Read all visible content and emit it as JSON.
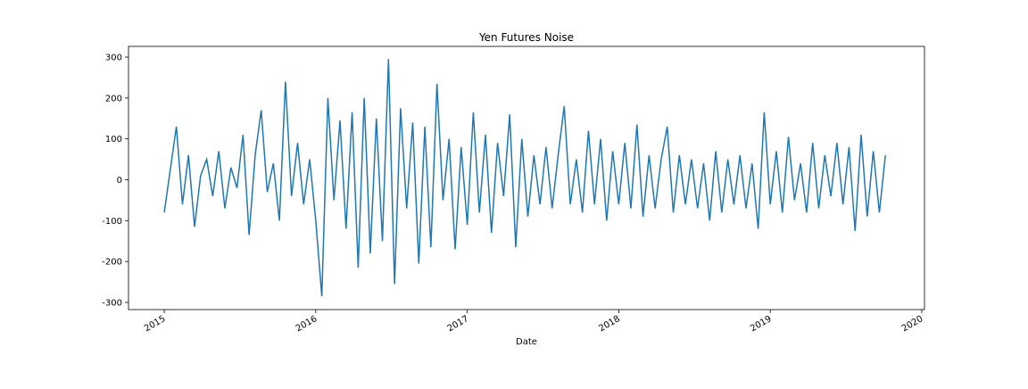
{
  "chart_data": {
    "type": "line",
    "title": "Yen Futures Noise",
    "x_label": "Date",
    "x": [
      2015.0,
      2015.04,
      2015.08,
      2015.12,
      2015.16,
      2015.2,
      2015.24,
      2015.28,
      2015.32,
      2015.36,
      2015.4,
      2015.44,
      2015.48,
      2015.52,
      2015.56,
      2015.6,
      2015.64,
      2015.68,
      2015.72,
      2015.76,
      2015.8,
      2015.84,
      2015.88,
      2015.92,
      2015.96,
      2016.0,
      2016.04,
      2016.08,
      2016.12,
      2016.16,
      2016.2,
      2016.24,
      2016.28,
      2016.32,
      2016.36,
      2016.4,
      2016.44,
      2016.48,
      2016.52,
      2016.56,
      2016.6,
      2016.64,
      2016.68,
      2016.72,
      2016.76,
      2016.8,
      2016.84,
      2016.88,
      2016.92,
      2016.96,
      2017.0,
      2017.04,
      2017.08,
      2017.12,
      2017.16,
      2017.2,
      2017.24,
      2017.28,
      2017.32,
      2017.36,
      2017.4,
      2017.44,
      2017.48,
      2017.52,
      2017.56,
      2017.6,
      2017.64,
      2017.68,
      2017.72,
      2017.76,
      2017.8,
      2017.84,
      2017.88,
      2017.92,
      2017.96,
      2018.0,
      2018.04,
      2018.08,
      2018.12,
      2018.16,
      2018.2,
      2018.24,
      2018.28,
      2018.32,
      2018.36,
      2018.4,
      2018.44,
      2018.48,
      2018.52,
      2018.56,
      2018.6,
      2018.64,
      2018.68,
      2018.72,
      2018.76,
      2018.8,
      2018.84,
      2018.88,
      2018.92,
      2018.96,
      2019.0,
      2019.04,
      2019.08,
      2019.12,
      2019.16,
      2019.2,
      2019.24,
      2019.28,
      2019.32,
      2019.36,
      2019.4,
      2019.44,
      2019.48,
      2019.52,
      2019.56,
      2019.6,
      2019.64,
      2019.68,
      2019.72,
      2019.76
    ],
    "values": [
      -80,
      25,
      130,
      -60,
      60,
      -115,
      10,
      50,
      -40,
      70,
      -70,
      30,
      -20,
      110,
      -135,
      60,
      170,
      -30,
      40,
      -100,
      240,
      -40,
      90,
      -60,
      50,
      -100,
      -285,
      200,
      -50,
      145,
      -120,
      165,
      -215,
      200,
      -180,
      150,
      -150,
      295,
      -255,
      175,
      -70,
      140,
      -205,
      130,
      -165,
      235,
      -50,
      100,
      -170,
      80,
      -110,
      165,
      -80,
      110,
      -130,
      90,
      -40,
      160,
      -165,
      100,
      -90,
      60,
      -60,
      80,
      -70,
      60,
      180,
      -60,
      50,
      -80,
      120,
      -60,
      100,
      -100,
      70,
      -60,
      90,
      -70,
      135,
      -90,
      60,
      -70,
      50,
      130,
      -80,
      60,
      -60,
      50,
      -70,
      40,
      -100,
      70,
      -80,
      50,
      -60,
      60,
      -70,
      40,
      -120,
      165,
      -60,
      70,
      -80,
      105,
      -50,
      40,
      -80,
      90,
      -70,
      60,
      -40,
      90,
      -60,
      80,
      -125,
      110,
      -90,
      70,
      -80,
      60
    ],
    "color": "#1f77b4",
    "xlim": [
      2014.764,
      2020.018
    ],
    "xticks": [
      2015,
      2016,
      2017,
      2018,
      2019,
      2020
    ],
    "ylim": [
      -317.5,
      326.2
    ],
    "yticks": [
      -300,
      -200,
      -100,
      0,
      100,
      200,
      300
    ]
  }
}
